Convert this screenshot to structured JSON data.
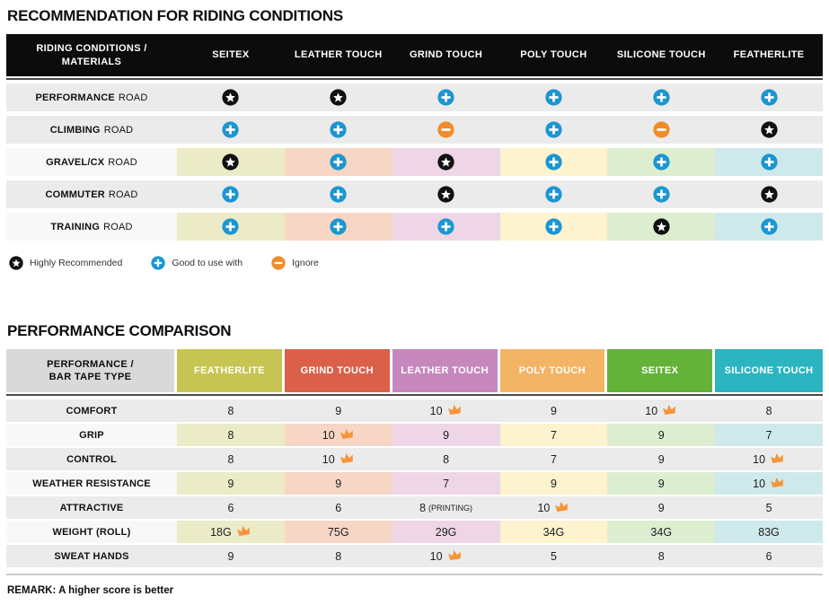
{
  "chart_data": [
    {
      "type": "table",
      "title": "RECOMMENDATION FOR RIDING CONDITIONS",
      "corner": [
        "RIDING CONDITIONS /",
        "MATERIALS"
      ],
      "columns": [
        "SEITEX",
        "LEATHER TOUCH",
        "GRIND TOUCH",
        "POLY TOUCH",
        "SILICONE TOUCH",
        "FEATHERLITE"
      ],
      "rows": [
        {
          "label_strong": "PERFORMANCE",
          "label_rest": "ROAD",
          "tinted": false,
          "cells": [
            "star",
            "star",
            "plus",
            "plus",
            "plus",
            "plus"
          ]
        },
        {
          "label_strong": "CLIMBING",
          "label_rest": "ROAD",
          "tinted": false,
          "cells": [
            "plus",
            "plus",
            "minus",
            "plus",
            "minus",
            "star"
          ]
        },
        {
          "label_strong": "GRAVEL/CX",
          "label_rest": "ROAD",
          "tinted": true,
          "cells": [
            "star",
            "plus",
            "star",
            "plus",
            "plus",
            "plus"
          ]
        },
        {
          "label_strong": "COMMUTER",
          "label_rest": "ROAD",
          "tinted": false,
          "cells": [
            "plus",
            "plus",
            "star",
            "plus",
            "plus",
            "star"
          ]
        },
        {
          "label_strong": "TRAINING",
          "label_rest": "ROAD",
          "tinted": true,
          "cells": [
            "plus",
            "plus",
            "plus",
            "plus",
            "star",
            "plus"
          ]
        }
      ],
      "legend": [
        {
          "icon": "star",
          "label": "Highly Recommended"
        },
        {
          "icon": "plus",
          "label": "Good to use with"
        },
        {
          "icon": "minus",
          "label": "Ignore"
        }
      ]
    },
    {
      "type": "table",
      "title": "PERFORMANCE COMPARISON",
      "corner": [
        "PERFORMANCE /",
        "BAR TAPE TYPE"
      ],
      "columns": [
        {
          "label": "FEATHERLITE",
          "color": "#c6c553"
        },
        {
          "label": "GRIND TOUCH",
          "color": "#da6049"
        },
        {
          "label": "LEATHER TOUCH",
          "color": "#c687bd"
        },
        {
          "label": "POLY TOUCH",
          "color": "#f4b466"
        },
        {
          "label": "SEITEX",
          "color": "#65b23a"
        },
        {
          "label": "SILICONE TOUCH",
          "color": "#2cb4c0"
        }
      ],
      "rows": [
        {
          "label": "COMFORT",
          "tinted": false,
          "cells": [
            {
              "v": "8"
            },
            {
              "v": "9"
            },
            {
              "v": "10",
              "crown": true
            },
            {
              "v": "9"
            },
            {
              "v": "10",
              "crown": true
            },
            {
              "v": "8"
            }
          ]
        },
        {
          "label": "GRIP",
          "tinted": true,
          "cells": [
            {
              "v": "8"
            },
            {
              "v": "10",
              "crown": true
            },
            {
              "v": "9"
            },
            {
              "v": "7"
            },
            {
              "v": "9"
            },
            {
              "v": "7"
            }
          ]
        },
        {
          "label": "CONTROL",
          "tinted": false,
          "cells": [
            {
              "v": "8"
            },
            {
              "v": "10",
              "crown": true
            },
            {
              "v": "8"
            },
            {
              "v": "7"
            },
            {
              "v": "9"
            },
            {
              "v": "10",
              "crown": true
            }
          ]
        },
        {
          "label": "WEATHER RESISTANCE",
          "tinted": true,
          "cells": [
            {
              "v": "9"
            },
            {
              "v": "9"
            },
            {
              "v": "7"
            },
            {
              "v": "9"
            },
            {
              "v": "9"
            },
            {
              "v": "10",
              "crown": true
            }
          ]
        },
        {
          "label": "ATTRACTIVE",
          "tinted": false,
          "cells": [
            {
              "v": "6"
            },
            {
              "v": "6"
            },
            {
              "v": "8",
              "note": "(PRINTING)"
            },
            {
              "v": "10",
              "crown": true
            },
            {
              "v": "9"
            },
            {
              "v": "5"
            }
          ]
        },
        {
          "label": "WEIGHT (ROLL)",
          "tinted": true,
          "cells": [
            {
              "v": "18G",
              "crown": true
            },
            {
              "v": "75G"
            },
            {
              "v": "29G"
            },
            {
              "v": "34G"
            },
            {
              "v": "34G"
            },
            {
              "v": "83G"
            }
          ]
        },
        {
          "label": "SWEAT HANDS",
          "tinted": false,
          "cells": [
            {
              "v": "9"
            },
            {
              "v": "8"
            },
            {
              "v": "10",
              "crown": true
            },
            {
              "v": "5"
            },
            {
              "v": "8"
            },
            {
              "v": "6"
            }
          ]
        }
      ],
      "remark": "REMARK: A higher score is better"
    }
  ],
  "colors": {
    "row_gray": "#ebebeb",
    "row_label_light": "#f8f8f8",
    "tints": [
      "#ebecc7",
      "#f7d6c5",
      "#efd6e6",
      "#fdf3cf",
      "#ddeed0",
      "#cee9ec"
    ],
    "header1_bg": "#0c0c0c",
    "corner2_bg": "#d9d9d9",
    "icon_star_bg": "#111111",
    "icon_plus_bg": "#1b96d2",
    "icon_minus_bg": "#ee8d2a",
    "crown": "#f5953b"
  }
}
